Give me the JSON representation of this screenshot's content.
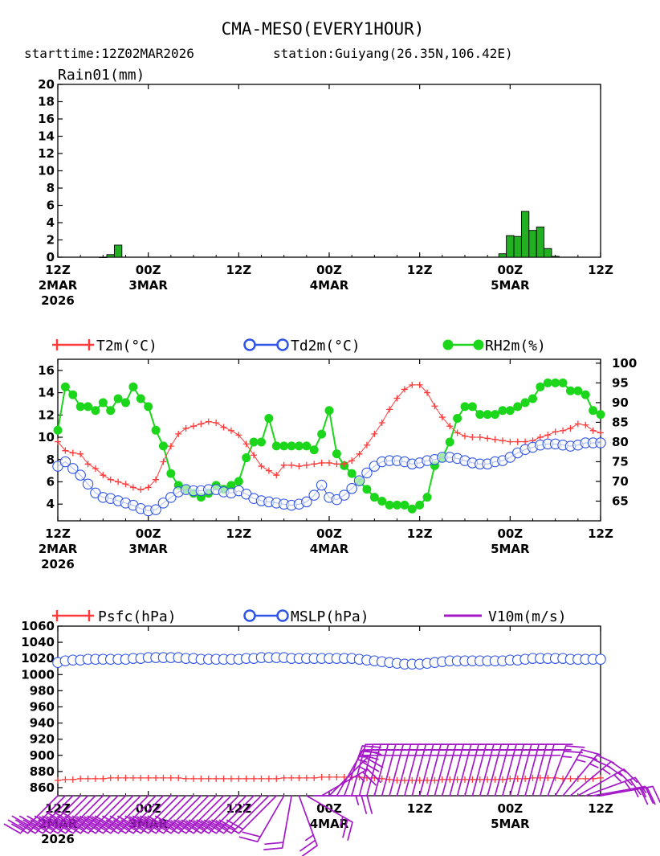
{
  "title": "CMA-MESO(EVERY1HOUR)",
  "subtitle": {
    "starttime": "starttime:12Z02MAR2026",
    "station": "station:Guiyang(26.35N,106.42E)"
  },
  "colors": {
    "rain": "#22b022",
    "t2m": "#ff3a3a",
    "td2m": "#2f54e6",
    "rh2m": "#1bd61b",
    "psfc": "#ff3a3a",
    "mslp": "#2f54e6",
    "wind": "#a418c8"
  },
  "x_ticks": [
    {
      "hour": 0,
      "line1": "12Z",
      "line2": "2MAR",
      "line3": "2026"
    },
    {
      "hour": 12,
      "line1": "00Z",
      "line2": "3MAR",
      "line3": ""
    },
    {
      "hour": 24,
      "line1": "12Z",
      "line2": "",
      "line3": ""
    },
    {
      "hour": 36,
      "line1": "00Z",
      "line2": "4MAR",
      "line3": ""
    },
    {
      "hour": 48,
      "line1": "12Z",
      "line2": "",
      "line3": ""
    },
    {
      "hour": 60,
      "line1": "00Z",
      "line2": "5MAR",
      "line3": ""
    },
    {
      "hour": 72,
      "line1": "12Z",
      "line2": "",
      "line3": ""
    }
  ],
  "chart_data": [
    {
      "type": "bar",
      "title": "Rain01(mm)",
      "x_range": [
        0,
        72
      ],
      "ylim": [
        0,
        20
      ],
      "yticks": [
        0,
        2,
        4,
        6,
        8,
        10,
        12,
        14,
        16,
        18,
        20
      ],
      "x": [
        6,
        7,
        8,
        59,
        60,
        61,
        62,
        63,
        64,
        65,
        66
      ],
      "values": [
        0,
        0.3,
        1.4,
        0.4,
        2.5,
        2.4,
        5.3,
        3.1,
        3.5,
        1.0,
        0.1
      ]
    },
    {
      "type": "line",
      "x_range": [
        0,
        72
      ],
      "ylim": [
        2.5,
        17
      ],
      "yticks": [
        4,
        6,
        8,
        10,
        12,
        14,
        16
      ],
      "y2lim": [
        60,
        101
      ],
      "y2ticks": [
        65,
        70,
        75,
        80,
        85,
        90,
        95,
        100
      ],
      "x": [
        0,
        1,
        2,
        3,
        4,
        5,
        6,
        7,
        8,
        9,
        10,
        11,
        12,
        13,
        14,
        15,
        16,
        17,
        18,
        19,
        20,
        21,
        22,
        23,
        24,
        25,
        26,
        27,
        28,
        29,
        30,
        31,
        32,
        33,
        34,
        35,
        36,
        37,
        38,
        39,
        40,
        41,
        42,
        43,
        44,
        45,
        46,
        47,
        48,
        49,
        50,
        51,
        52,
        53,
        54,
        55,
        56,
        57,
        58,
        59,
        60,
        61,
        62,
        63,
        64,
        65,
        66,
        67,
        68,
        69,
        70,
        71,
        72
      ],
      "series": [
        {
          "name": "T2m(°C)",
          "axis": "left",
          "marker": "plus",
          "values": [
            9.6,
            8.8,
            8.6,
            8.5,
            7.6,
            7.2,
            6.6,
            6.2,
            6.0,
            5.8,
            5.5,
            5.3,
            5.5,
            6.2,
            7.8,
            9.2,
            10.3,
            10.8,
            11.0,
            11.2,
            11.4,
            11.3,
            10.9,
            10.6,
            10.2,
            9.4,
            8.4,
            7.4,
            7.0,
            6.6,
            7.5,
            7.5,
            7.4,
            7.5,
            7.6,
            7.7,
            7.7,
            7.6,
            7.6,
            7.9,
            8.5,
            9.3,
            10.3,
            11.3,
            12.5,
            13.5,
            14.3,
            14.7,
            14.7,
            14.0,
            12.8,
            11.8,
            11.0,
            10.4,
            10.1,
            10.0,
            10.0,
            9.9,
            9.8,
            9.7,
            9.6,
            9.6,
            9.6,
            9.7,
            10.0,
            10.2,
            10.5,
            10.6,
            10.8,
            11.2,
            11.1,
            10.6,
            10.4
          ]
        },
        {
          "name": "Td2m(°C)",
          "axis": "left",
          "marker": "circle",
          "values": [
            7.4,
            7.8,
            7.2,
            6.6,
            5.8,
            5.0,
            4.6,
            4.5,
            4.3,
            4.1,
            3.9,
            3.6,
            3.4,
            3.5,
            4.1,
            4.6,
            5.1,
            5.3,
            5.2,
            5.2,
            5.3,
            5.3,
            5.1,
            5.0,
            5.2,
            4.9,
            4.5,
            4.3,
            4.2,
            4.1,
            4.0,
            3.9,
            4.0,
            4.2,
            4.8,
            5.7,
            4.6,
            4.4,
            4.8,
            5.4,
            6.1,
            6.8,
            7.4,
            7.8,
            7.9,
            7.9,
            7.8,
            7.6,
            7.7,
            7.9,
            8.0,
            8.2,
            8.2,
            8.1,
            7.9,
            7.7,
            7.6,
            7.6,
            7.8,
            7.9,
            8.2,
            8.6,
            8.9,
            9.1,
            9.3,
            9.4,
            9.4,
            9.3,
            9.2,
            9.3,
            9.5,
            9.5,
            9.5
          ]
        },
        {
          "name": "RH2m(%)",
          "axis": "right",
          "marker": "dot",
          "values": [
            83,
            94,
            92,
            89,
            89,
            88,
            90,
            88,
            91,
            90,
            94,
            91,
            89,
            83,
            79,
            72,
            69,
            68,
            67,
            66,
            67,
            69,
            68,
            69,
            70,
            76,
            80,
            80,
            86,
            79,
            79,
            79,
            79,
            79,
            78,
            82,
            88,
            77,
            74,
            72,
            70,
            68,
            66,
            65,
            64,
            64,
            64,
            63,
            64,
            66,
            74,
            76,
            80,
            86,
            89,
            89,
            87,
            87,
            87,
            88,
            88,
            89,
            90,
            91,
            94,
            95,
            95,
            95,
            93,
            93,
            92,
            88,
            87
          ]
        }
      ]
    },
    {
      "type": "line",
      "x_range": [
        0,
        72
      ],
      "ylim": [
        850,
        1060
      ],
      "yticks": [
        860,
        880,
        900,
        920,
        940,
        960,
        980,
        1000,
        1020,
        1040,
        1060
      ],
      "x": [
        0,
        1,
        2,
        3,
        4,
        5,
        6,
        7,
        8,
        9,
        10,
        11,
        12,
        13,
        14,
        15,
        16,
        17,
        18,
        19,
        20,
        21,
        22,
        23,
        24,
        25,
        26,
        27,
        28,
        29,
        30,
        31,
        32,
        33,
        34,
        35,
        36,
        37,
        38,
        39,
        40,
        41,
        42,
        43,
        44,
        45,
        46,
        47,
        48,
        49,
        50,
        51,
        52,
        53,
        54,
        55,
        56,
        57,
        58,
        59,
        60,
        61,
        62,
        63,
        64,
        65,
        66,
        67,
        68,
        69,
        70,
        71,
        72
      ],
      "series": [
        {
          "name": "Psfc(hPa)",
          "marker": "plus",
          "values": [
            869,
            870,
            870,
            871,
            871,
            871,
            871,
            872,
            872,
            872,
            872,
            872,
            872,
            872,
            872,
            872,
            872,
            871,
            871,
            871,
            871,
            871,
            871,
            871,
            871,
            871,
            871,
            871,
            871,
            871,
            872,
            872,
            872,
            872,
            872,
            873,
            873,
            873,
            873,
            873,
            873,
            872,
            872,
            871,
            870,
            869,
            869,
            869,
            869,
            869,
            869,
            870,
            870,
            870,
            870,
            870,
            870,
            870,
            870,
            870,
            871,
            871,
            871,
            872,
            872,
            872,
            872,
            871,
            871,
            871,
            871,
            871,
            872
          ]
        },
        {
          "name": "MSLP(hPa)",
          "marker": "circle",
          "values": [
            1015,
            1017,
            1018,
            1018,
            1019,
            1019,
            1019,
            1019,
            1019,
            1019,
            1020,
            1020,
            1021,
            1021,
            1021,
            1021,
            1021,
            1020,
            1020,
            1019,
            1019,
            1019,
            1019,
            1019,
            1019,
            1020,
            1020,
            1021,
            1021,
            1021,
            1021,
            1020,
            1020,
            1020,
            1020,
            1020,
            1020,
            1020,
            1020,
            1020,
            1019,
            1018,
            1017,
            1016,
            1015,
            1014,
            1013,
            1013,
            1013,
            1014,
            1015,
            1016,
            1017,
            1017,
            1017,
            1017,
            1017,
            1017,
            1017,
            1017,
            1018,
            1018,
            1019,
            1020,
            1020,
            1020,
            1020,
            1020,
            1019,
            1019,
            1019,
            1019,
            1019
          ]
        },
        {
          "name": "V10m(m/s)",
          "marker": "wind-barb",
          "speed": [
            6,
            6,
            7,
            7,
            8,
            8,
            8,
            7,
            7,
            7,
            6,
            6,
            6,
            6,
            7,
            7,
            7,
            6,
            6,
            6,
            5,
            5,
            5,
            5,
            5,
            5,
            5,
            4,
            4,
            4,
            4,
            4,
            5,
            5,
            5,
            5,
            5,
            5,
            5,
            5,
            5,
            5,
            5,
            5,
            5,
            5,
            5,
            5,
            5,
            5,
            5,
            5,
            5,
            5,
            5,
            5,
            5,
            5,
            5,
            5,
            5,
            5,
            5,
            5,
            5,
            5,
            5,
            5,
            5,
            5,
            5,
            5,
            5
          ],
          "direction": [
            225,
            225,
            225,
            225,
            225,
            225,
            225,
            225,
            225,
            225,
            225,
            225,
            225,
            225,
            225,
            225,
            225,
            225,
            225,
            225,
            225,
            225,
            225,
            225,
            225,
            225,
            225,
            225,
            225,
            225,
            210,
            190,
            160,
            120,
            90,
            60,
            45,
            30,
            20,
            15,
            15,
            15,
            15,
            15,
            15,
            15,
            15,
            15,
            15,
            15,
            15,
            15,
            15,
            15,
            15,
            15,
            15,
            15,
            15,
            15,
            15,
            15,
            15,
            15,
            15,
            20,
            30,
            40,
            50,
            60,
            70,
            80,
            80
          ]
        }
      ]
    }
  ],
  "legend2": {
    "t2m": "T2m(°C)",
    "td2m": "Td2m(°C)",
    "rh2m": "RH2m(%)"
  },
  "legend3": {
    "psfc": "Psfc(hPa)",
    "mslp": "MSLP(hPa)",
    "v10m": "V10m(m/s)"
  }
}
